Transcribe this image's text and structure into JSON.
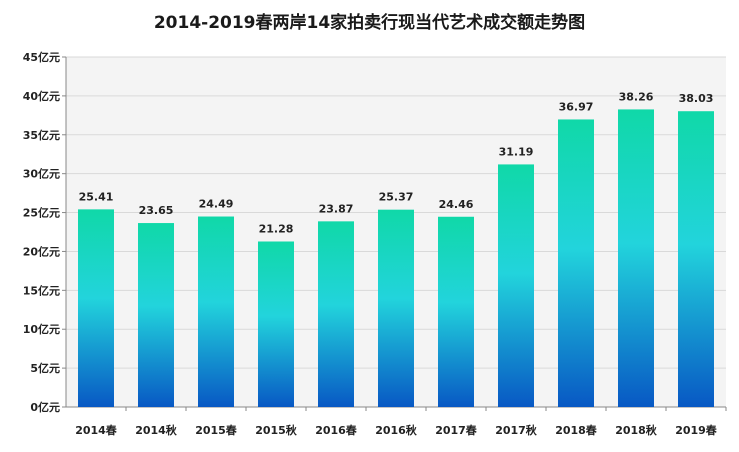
{
  "chart_data": {
    "type": "bar",
    "title": "2014-2019春两岸14家拍卖行现当代艺术成交额走势图",
    "xlabel": "",
    "ylabel": "",
    "categories": [
      "2014春",
      "2014秋",
      "2015春",
      "2015秋",
      "2016春",
      "2016秋",
      "2017春",
      "2017秋",
      "2018春",
      "2018秋",
      "2019春"
    ],
    "values": [
      25.41,
      23.65,
      24.49,
      21.28,
      23.87,
      25.37,
      24.46,
      31.19,
      36.97,
      38.26,
      38.03
    ],
    "value_labels": [
      "25.41",
      "23.65",
      "24.49",
      "21.28",
      "23.87",
      "25.37",
      "24.46",
      "31.19",
      "36.97",
      "38.26",
      "38.03"
    ],
    "ylim": [
      0,
      45
    ],
    "y_ticks": [
      0,
      5,
      10,
      15,
      20,
      25,
      30,
      35,
      40,
      45
    ],
    "y_tick_labels": [
      "0亿元",
      "5亿元",
      "10亿元",
      "15亿元",
      "20亿元",
      "25亿元",
      "30亿元",
      "35亿元",
      "40亿元",
      "45亿元"
    ],
    "grid": true,
    "legend": "none",
    "colors": {
      "bar_top": "#10d8a8",
      "bar_mid": "#22d4dc",
      "bar_bottom": "#0858c4",
      "grid": "#d9d9d9",
      "axis": "#888888",
      "plot_background": "#f4f4f4"
    }
  }
}
